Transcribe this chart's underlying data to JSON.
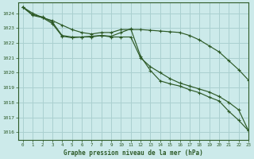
{
  "title": "Graphe pression niveau de la mer (hPa)",
  "background_color": "#cceaea",
  "grid_color": "#aad0d0",
  "line_color": "#2d5a27",
  "xlim": [
    -0.5,
    23
  ],
  "ylim": [
    1015.5,
    1024.7
  ],
  "yticks": [
    1016,
    1017,
    1018,
    1019,
    1020,
    1021,
    1022,
    1023,
    1024
  ],
  "xticks": [
    0,
    1,
    2,
    3,
    4,
    5,
    6,
    7,
    8,
    9,
    10,
    11,
    12,
    13,
    14,
    15,
    16,
    17,
    18,
    19,
    20,
    21,
    22,
    23
  ],
  "series1": [
    1024.4,
    1024.0,
    1023.7,
    1023.5,
    1023.2,
    1022.9,
    1022.7,
    1022.6,
    1022.7,
    1022.7,
    1022.9,
    1022.9,
    1022.9,
    1022.85,
    1022.8,
    1022.75,
    1022.7,
    1022.5,
    1022.2,
    1021.8,
    1021.4,
    1020.8,
    1020.2,
    1019.5
  ],
  "series2": [
    1024.4,
    1023.9,
    1023.75,
    1023.4,
    1022.5,
    1022.4,
    1022.4,
    1022.45,
    1022.5,
    1022.4,
    1022.4,
    1022.4,
    1021.0,
    1020.4,
    1020.0,
    1019.6,
    1019.3,
    1019.1,
    1018.9,
    1018.7,
    1018.4,
    1018.0,
    1017.5,
    1016.1
  ],
  "series3": [
    1024.4,
    1023.85,
    1023.7,
    1023.3,
    1022.45,
    1022.35,
    1022.4,
    1022.4,
    1022.5,
    1022.45,
    1022.7,
    1022.95,
    1021.1,
    1020.15,
    1019.45,
    1019.25,
    1019.1,
    1018.85,
    1018.65,
    1018.35,
    1018.1,
    1017.4,
    1016.8,
    1016.1
  ]
}
